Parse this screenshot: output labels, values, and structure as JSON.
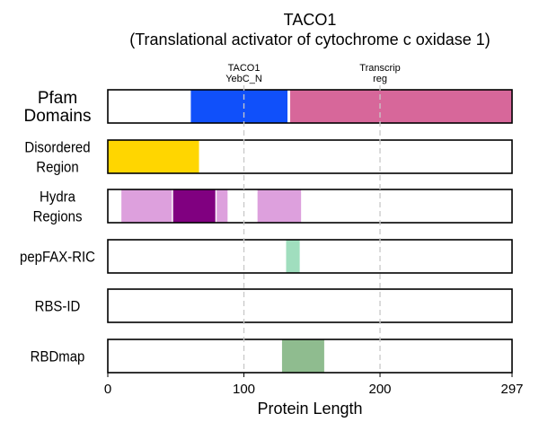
{
  "chart_data": {
    "type": "bar",
    "title": "TACO1",
    "subtitle": "(Translational activator of cytochrome c oxidase 1)",
    "xlabel": "Protein Length",
    "xlim": [
      0,
      297
    ],
    "xticks": [
      0,
      100,
      200,
      297
    ],
    "gridlines": [
      100,
      200
    ],
    "rows": [
      {
        "label_lines": [
          "Pfam",
          "Domains"
        ],
        "segments": [
          {
            "start": 61,
            "end": 132,
            "color": "#1050FA"
          },
          {
            "start": 134,
            "end": 297,
            "color": "#D7679A"
          }
        ]
      },
      {
        "label_lines": [
          "Disordered",
          "Region"
        ],
        "segments": [
          {
            "start": 0,
            "end": 67,
            "color": "#FFD600"
          }
        ]
      },
      {
        "label_lines": [
          "Hydra",
          "Regions"
        ],
        "segments": [
          {
            "start": 10,
            "end": 47,
            "color": "#DDA0DD"
          },
          {
            "start": 48,
            "end": 79,
            "color": "#800080"
          },
          {
            "start": 80,
            "end": 88,
            "color": "#DDA0DD"
          },
          {
            "start": 110,
            "end": 142,
            "color": "#DDA0DD"
          }
        ]
      },
      {
        "label_lines": [
          "pepFAX-RIC"
        ],
        "segments": [
          {
            "start": 131,
            "end": 141,
            "color": "#A0DEBE"
          }
        ]
      },
      {
        "label_lines": [
          "RBS-ID"
        ],
        "segments": []
      },
      {
        "label_lines": [
          "RBDmap"
        ],
        "segments": [
          {
            "start": 128,
            "end": 159,
            "color": "#8FBC8F"
          }
        ]
      }
    ],
    "domain_annotations": [
      {
        "lines": [
          "TACO1",
          "YebC_N"
        ],
        "position": 100
      },
      {
        "lines": [
          "Transcrip",
          "reg"
        ],
        "position": 200
      }
    ]
  }
}
